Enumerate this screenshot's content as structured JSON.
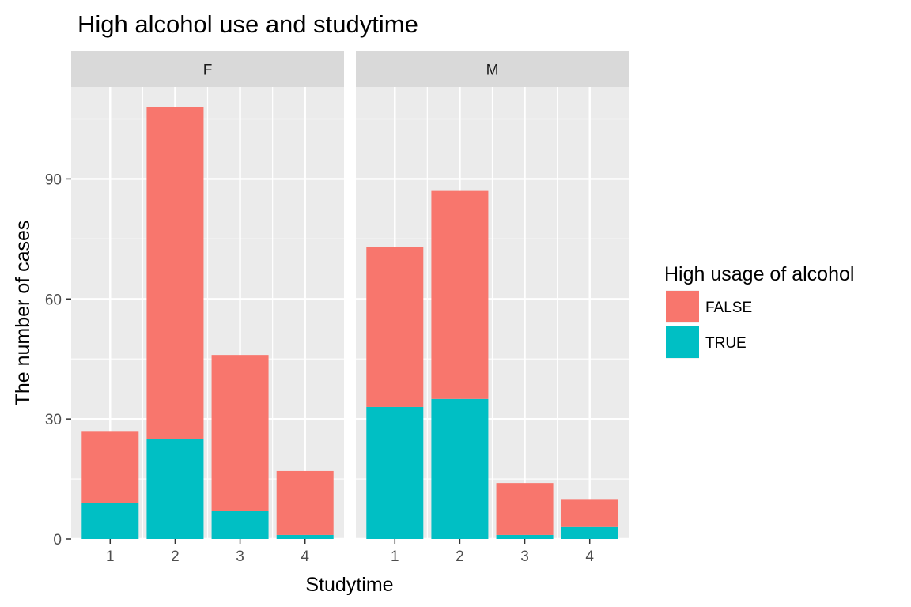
{
  "chart_data": {
    "type": "bar",
    "stacked": true,
    "faceted_by": "sex",
    "title": "High alcohol use and studytime",
    "xlabel": "Studytime",
    "ylabel": "The number of cases",
    "ylim": [
      0,
      113
    ],
    "yticks": [
      0,
      30,
      60,
      90
    ],
    "categories": [
      "1",
      "2",
      "3",
      "4"
    ],
    "grid": true,
    "legend": {
      "title": "High usage of alcohol",
      "placement": "right",
      "entries": [
        {
          "label": "FALSE",
          "color": "#F8766D"
        },
        {
          "label": "TRUE",
          "color": "#00BFC4"
        }
      ]
    },
    "panels": [
      {
        "label": "F",
        "series": [
          {
            "name": "TRUE",
            "values": [
              9,
              25,
              7,
              1
            ]
          },
          {
            "name": "FALSE",
            "values": [
              18,
              83,
              39,
              16
            ]
          }
        ]
      },
      {
        "label": "M",
        "series": [
          {
            "name": "TRUE",
            "values": [
              33,
              35,
              1,
              3
            ]
          },
          {
            "name": "FALSE",
            "values": [
              40,
              52,
              13,
              7
            ]
          }
        ]
      }
    ]
  },
  "colors": {
    "panel_background": "#EBEBEB",
    "strip_background": "#D9D9D9",
    "grid_line": "#FFFFFF",
    "false_fill": "#F8766D",
    "true_fill": "#00BFC4"
  }
}
